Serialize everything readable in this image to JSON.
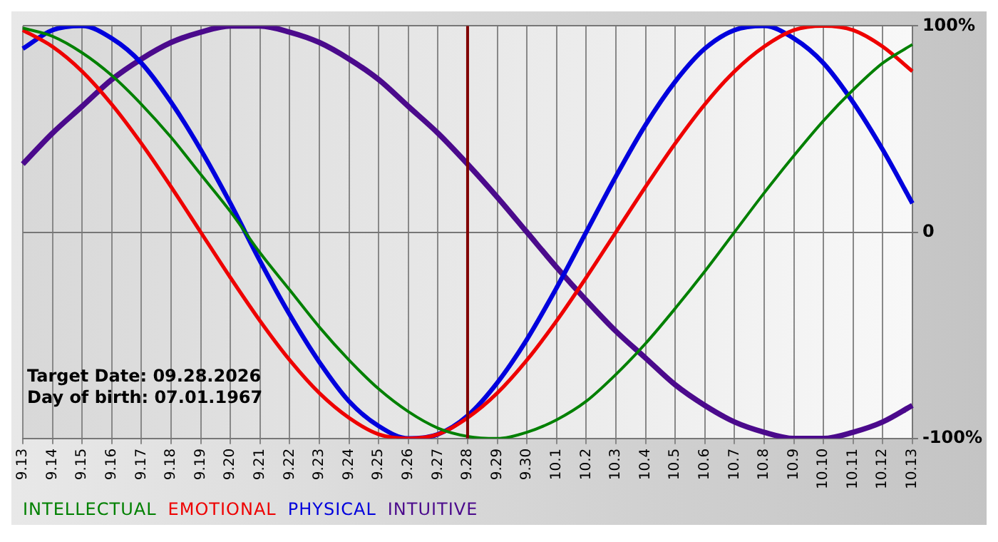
{
  "chart_data": {
    "type": "line",
    "categories": [
      "9.13",
      "9.14",
      "9.15",
      "9.16",
      "9.17",
      "9.18",
      "9.19",
      "9.20",
      "9.21",
      "9.22",
      "9.23",
      "9.24",
      "9.25",
      "9.26",
      "9.27",
      "9.28",
      "9.29",
      "9.30",
      "10.1",
      "10.2",
      "10.3",
      "10.4",
      "10.5",
      "10.6",
      "10.7",
      "10.8",
      "10.9",
      "10.10",
      "10.11",
      "10.12",
      "10.13"
    ],
    "series": [
      {
        "name": "INTELLECTUAL",
        "color": "#008000",
        "values": [
          99,
          95,
          87,
          76,
          62,
          46,
          28,
          10,
          -10,
          -28,
          -46,
          -62,
          -76,
          -87,
          -95,
          -99,
          -100,
          -97,
          -91,
          -82,
          -69,
          -54,
          -37,
          -19,
          0,
          19,
          37,
          54,
          69,
          82,
          91
        ]
      },
      {
        "name": "EMOTIONAL",
        "color": "#ee0000",
        "values": [
          98,
          90,
          78,
          62,
          43,
          22,
          0,
          -22,
          -43,
          -62,
          -78,
          -90,
          -98,
          -100,
          -98,
          -90,
          -78,
          -62,
          -43,
          -22,
          0,
          22,
          43,
          62,
          78,
          90,
          98,
          100,
          98,
          90,
          78
        ]
      },
      {
        "name": "PHYSICAL",
        "color": "#0000dd",
        "values": [
          89,
          98,
          100,
          94,
          82,
          63,
          40,
          14,
          -14,
          -40,
          -63,
          -82,
          -94,
          -100,
          -98,
          -89,
          -73,
          -52,
          -27,
          0,
          27,
          52,
          73,
          89,
          98,
          100,
          94,
          82,
          63,
          40,
          14
        ]
      },
      {
        "name": "INTUITIVE",
        "color": "#4b0a8c",
        "values": [
          33,
          48,
          61,
          74,
          84,
          92,
          97,
          100,
          100,
          97,
          92,
          84,
          74,
          61,
          48,
          33,
          17,
          0,
          -17,
          -33,
          -48,
          -61,
          -74,
          -84,
          -92,
          -97,
          -100,
          -100,
          -97,
          -92,
          -84
        ]
      }
    ],
    "ylim": [
      -100,
      100
    ],
    "yticks": [
      {
        "value": -100,
        "label": "-100%"
      },
      0,
      {
        "value": 100,
        "label": "100%"
      }
    ],
    "grid": true,
    "legend": "bottom left",
    "marker": "none",
    "line_style": "solid",
    "ref_lines": [
      {
        "axis": "x",
        "value": "9.28",
        "color": "#800000"
      }
    ],
    "annotations": [
      "Target Date: 09.28.2026",
      "Day of birth: 07.01.1967"
    ]
  }
}
